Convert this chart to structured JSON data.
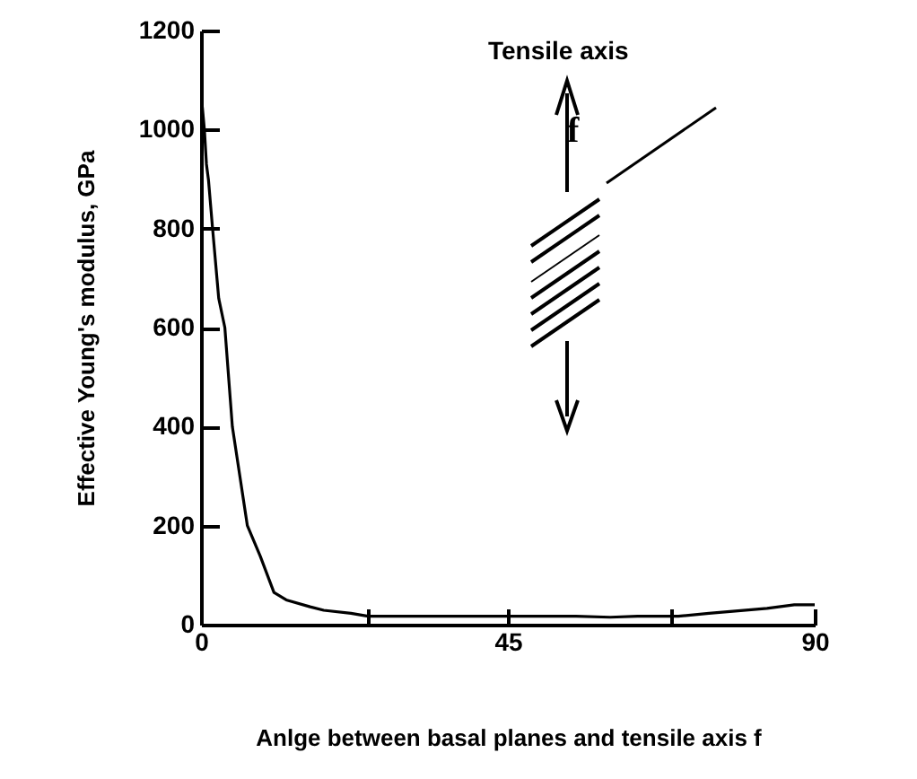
{
  "chart_data": {
    "type": "line",
    "xlabel": "Anlge between basal planes and tensile axis f",
    "ylabel": "Effective Young's modulus, GPa",
    "annotations": [
      "Tensile axis",
      "f"
    ],
    "x": [
      0.2,
      0.5,
      0.8,
      1.1,
      1.7,
      2.6,
      3.5,
      4.6,
      6.8,
      8.7,
      10.7,
      12.5,
      16,
      18,
      22,
      24.5,
      40,
      55,
      60,
      64,
      70,
      74.5,
      83,
      87,
      90
    ],
    "series": [
      {
        "color": "#000000",
        "values": [
          1045,
          1000,
          930,
          898,
          800,
          659,
          600,
          400,
          200,
          138,
          65,
          50,
          36,
          29,
          23,
          17,
          17,
          17,
          15,
          17,
          17,
          23,
          33,
          40,
          40
        ]
      }
    ],
    "xlim": [
      0,
      90
    ],
    "ylim": [
      0,
      1200
    ],
    "xticks": [
      0,
      {
        "value": 24.5,
        "label": null
      },
      45,
      {
        "value": 69,
        "label": null
      },
      90
    ],
    "yticks": [
      0,
      200,
      400,
      600,
      800,
      1000,
      1200
    ],
    "grid": false,
    "legend": false,
    "marker": "none",
    "line_style": "solid"
  }
}
